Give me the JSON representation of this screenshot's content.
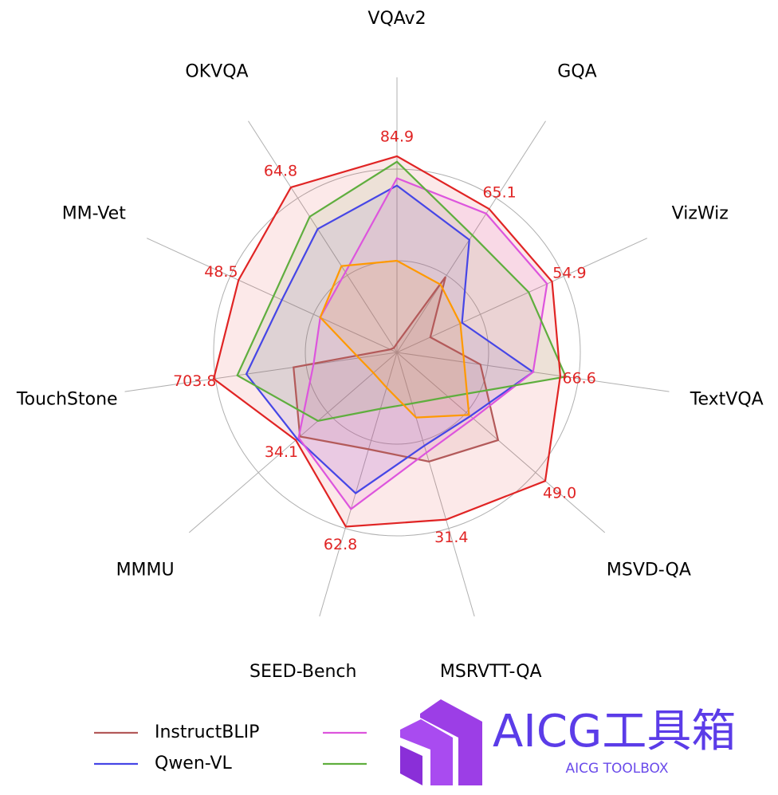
{
  "chart_data": {
    "type": "radar",
    "categories": [
      "VQAv2",
      "GQA",
      "VizWiz",
      "TextVQA",
      "MSVD-QA",
      "MSRVTT-QA",
      "SEED-Bench",
      "MMMU",
      "TouchStone",
      "MM-Vet",
      "OKVQA"
    ],
    "rlim": [
      0,
      1.5
    ],
    "rticks": [
      0.5,
      1.0
    ],
    "grid": true,
    "series": [
      {
        "name": "InstructBLIP",
        "color": "#b35a5a",
        "in_legend": true,
        "values": [
          0.05,
          0.49,
          0.2,
          0.46,
          0.73,
          0.62,
          0.55,
          0.7,
          0.57,
          0.04,
          0.03
        ]
      },
      {
        "name": "Qwen-VL",
        "color": "#4646e6",
        "in_legend": true,
        "values": [
          0.91,
          0.73,
          0.39,
          0.75,
          0.53,
          0.53,
          0.8,
          0.72,
          0.83,
          0.69,
          0.8
        ]
      },
      {
        "color": "#dd55dd",
        "in_legend": true,
        "values": [
          0.95,
          0.9,
          0.9,
          0.75,
          0.55,
          0.57,
          0.89,
          0.71,
          0.46,
          0.46,
          0.52
        ]
      },
      {
        "color": "#5fae3e",
        "in_legend": true,
        "values": [
          1.04,
          0.76,
          0.79,
          0.93,
          0.37,
          0.29,
          0.32,
          0.57,
          0.88,
          0.74,
          0.88
        ]
      },
      {
        "color": "#ff9900",
        "in_legend": false,
        "values": [
          0.5,
          0.44,
          0.38,
          0.37,
          0.52,
          0.37,
          0.2,
          0.17,
          0.21,
          0.46,
          0.56
        ]
      },
      {
        "color": "#e02424",
        "in_legend": false,
        "values": [
          1.07,
          0.93,
          0.93,
          0.9,
          1.07,
          0.95,
          0.99,
          0.73,
          1.01,
          0.95,
          1.07
        ],
        "point_labels": [
          "84.9",
          "65.1",
          "54.9",
          "66.6",
          "49.0",
          "31.4",
          "62.8",
          "34.1",
          "703.8",
          "48.5",
          "64.8"
        ]
      }
    ]
  },
  "watermark": {
    "title": "AICG工具箱",
    "subtitle": "AICG TOOLBOX"
  }
}
